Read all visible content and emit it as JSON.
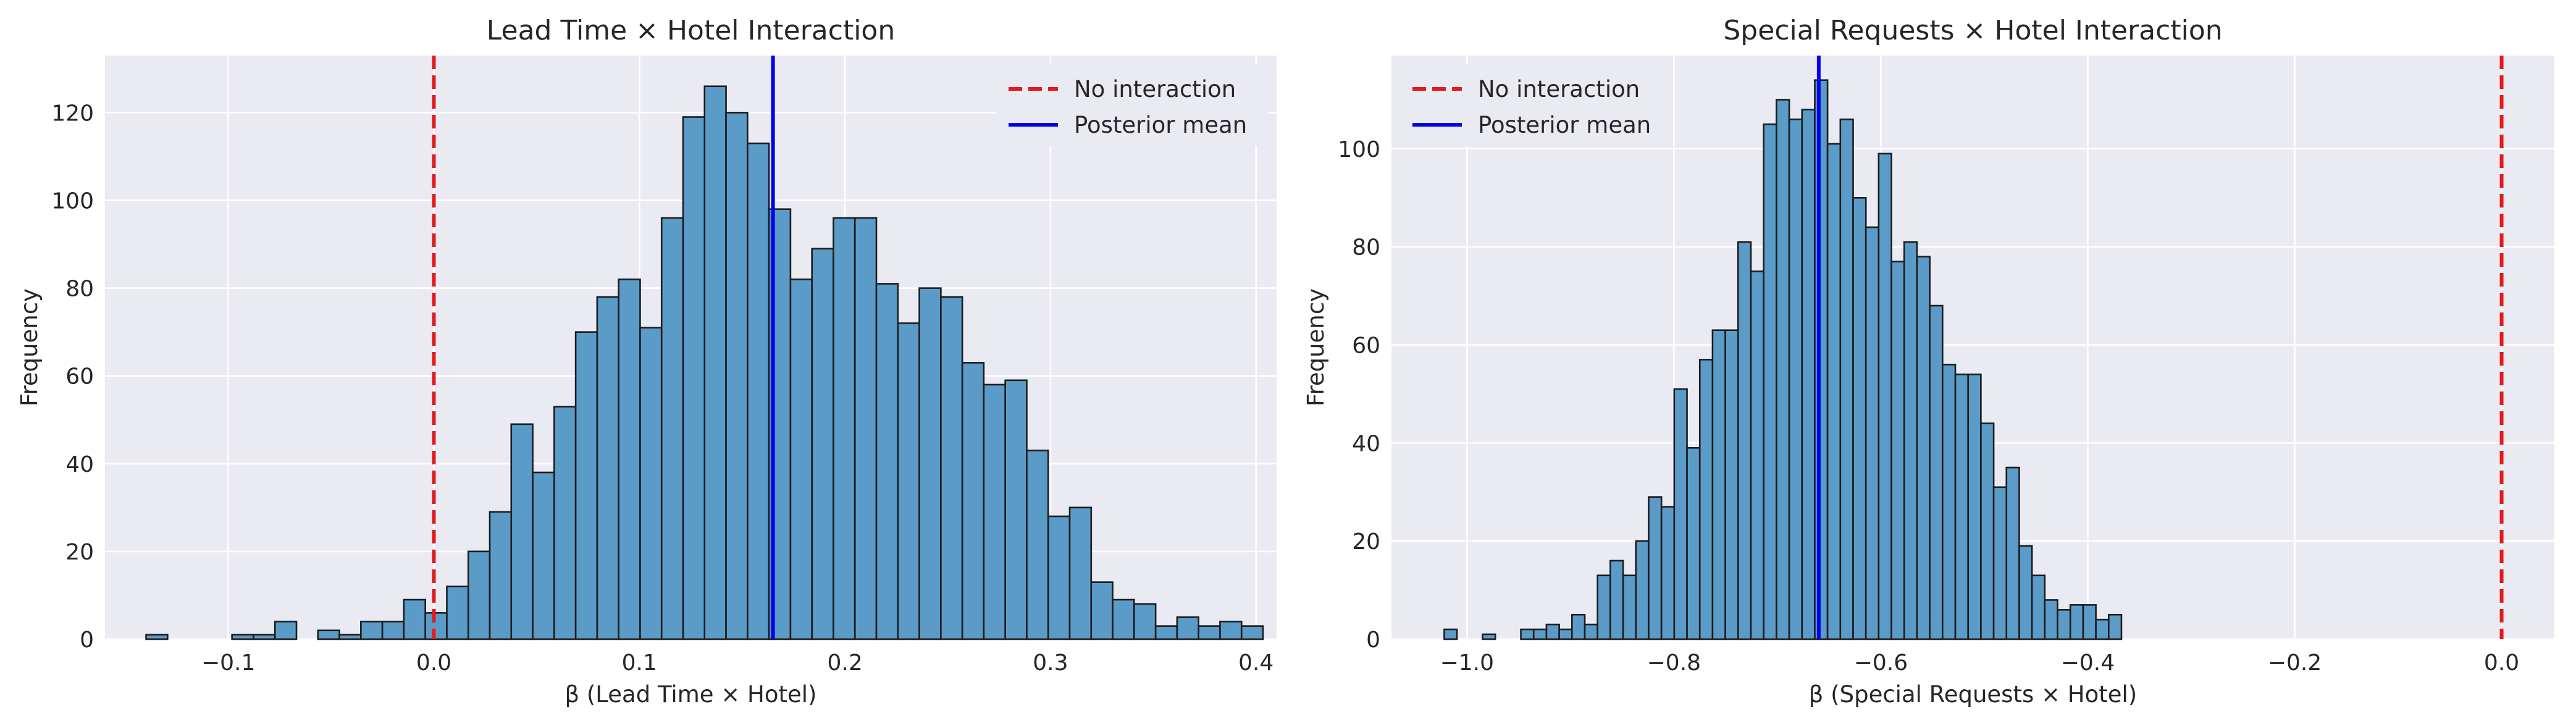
{
  "chart_data": [
    {
      "type": "bar",
      "title": "Lead Time × Hotel Interaction",
      "xlabel": "β (Lead Time × Hotel)",
      "ylabel": "Frequency",
      "xlim": [
        -0.16,
        0.41
      ],
      "ylim": [
        0,
        133
      ],
      "xticks": [
        -0.1,
        0.0,
        0.1,
        0.2,
        0.3,
        0.4
      ],
      "xtick_labels": [
        "−0.1",
        "0.0",
        "0.1",
        "0.2",
        "0.3",
        "0.4"
      ],
      "yticks": [
        0,
        20,
        40,
        60,
        80,
        100,
        120
      ],
      "ytick_labels": [
        "0",
        "20",
        "40",
        "60",
        "80",
        "100",
        "120"
      ],
      "grid": true,
      "legend_position": "top-right",
      "bins": {
        "start": -0.14,
        "width": 0.01045,
        "counts": [
          1,
          0,
          0,
          0,
          1,
          1,
          4,
          0,
          2,
          1,
          4,
          4,
          9,
          6,
          12,
          20,
          29,
          49,
          38,
          53,
          70,
          78,
          82,
          71,
          96,
          119,
          126,
          120,
          113,
          98,
          82,
          89,
          96,
          96,
          81,
          72,
          80,
          78,
          63,
          58,
          59,
          43,
          28,
          30,
          13,
          9,
          8,
          3,
          5,
          3,
          4,
          3
        ]
      },
      "reference_lines": [
        {
          "name": "No interaction",
          "x": 0.0,
          "color": "#e41a1c",
          "style": "dashed"
        },
        {
          "name": "Posterior mean",
          "x": 0.165,
          "color": "#0000ee",
          "style": "solid"
        }
      ]
    },
    {
      "type": "bar",
      "title": "Special Requests × Hotel Interaction",
      "xlabel": "β (Special Requests × Hotel)",
      "ylabel": "Frequency",
      "xlim": [
        -1.073,
        0.051
      ],
      "ylim": [
        0,
        119
      ],
      "xticks": [
        -1.0,
        -0.8,
        -0.6,
        -0.4,
        -0.2,
        0.0
      ],
      "xtick_labels": [
        "−1.0",
        "−0.8",
        "−0.6",
        "−0.4",
        "−0.2",
        "0.0"
      ],
      "yticks": [
        0,
        20,
        40,
        60,
        80,
        100
      ],
      "ytick_labels": [
        "0",
        "20",
        "40",
        "60",
        "80",
        "100"
      ],
      "grid": true,
      "legend_position": "top-left",
      "bins": {
        "start": -1.022,
        "width": 0.01235,
        "counts": [
          2,
          0,
          0,
          1,
          0,
          0,
          2,
          2,
          3,
          2,
          5,
          3,
          13,
          16,
          13,
          20,
          29,
          27,
          51,
          39,
          57,
          63,
          63,
          81,
          75,
          105,
          110,
          106,
          108,
          114,
          101,
          106,
          90,
          84,
          99,
          77,
          81,
          78,
          68,
          56,
          54,
          54,
          44,
          31,
          35,
          19,
          13,
          8,
          6,
          7,
          7,
          4,
          5
        ]
      },
      "reference_lines": [
        {
          "name": "No interaction",
          "x": 0.0,
          "color": "#e41a1c",
          "style": "dashed"
        },
        {
          "name": "Posterior mean",
          "x": -0.66,
          "color": "#0000ee",
          "style": "solid"
        }
      ]
    }
  ]
}
